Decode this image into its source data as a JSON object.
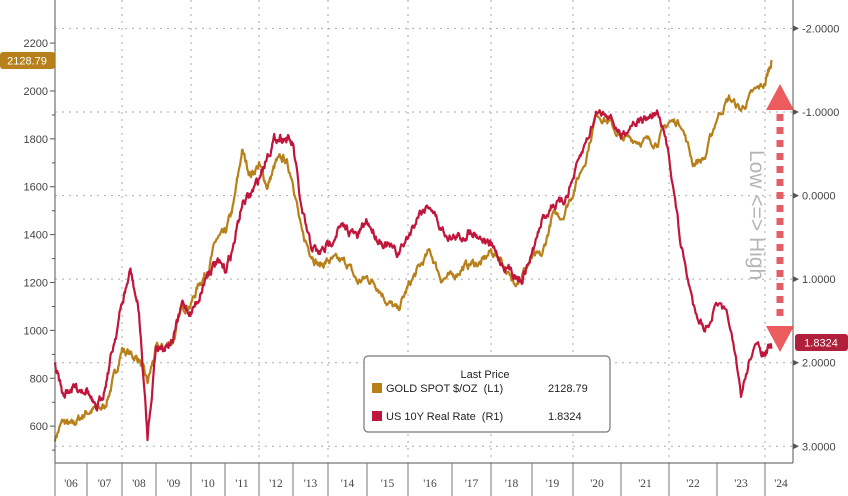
{
  "chart_data": {
    "type": "line",
    "title": "",
    "x_tick_labels": [
      "'06",
      "'07",
      "'08",
      "'09",
      "'10",
      "'11",
      "'12",
      "'13",
      "'14",
      "'15",
      "'16",
      "'17",
      "'18",
      "'19",
      "'20",
      "'21",
      "'22",
      "'23",
      "'24"
    ],
    "left_axis": {
      "ticks": [
        "600",
        "800",
        "1000",
        "1200",
        "1400",
        "1600",
        "1800",
        "2000",
        "2200"
      ],
      "ylim": [
        446,
        2380
      ]
    },
    "right_axis": {
      "ticks": [
        "-2.0000",
        "-1.0000",
        "0.0000",
        "1.0000",
        "2.0000",
        "3.0000"
      ],
      "ylim": [
        -2.34,
        3.2
      ],
      "inverted": true
    },
    "grid": true,
    "legend": {
      "position": "bottom-center",
      "header": "Last Price",
      "entries": [
        {
          "label": "GOLD SPOT $/OZ  (L1)",
          "value": "2128.79"
        },
        {
          "label": "US 10Y Real Rate  (R1)",
          "value": "1.8324"
        }
      ]
    },
    "last_value_badges": {
      "left": "2128.79",
      "right": "1.8324"
    },
    "annotation": "Low <=> High",
    "series": [
      {
        "name": "GOLD SPOT $/OZ",
        "axis": "left",
        "color": "#b8801a",
        "x": [
          2006.0,
          2006.25,
          2006.5,
          2006.75,
          2007.0,
          2007.25,
          2007.5,
          2007.75,
          2008.0,
          2008.25,
          2008.5,
          2008.75,
          2009.0,
          2009.25,
          2009.5,
          2009.75,
          2010.0,
          2010.25,
          2010.5,
          2010.75,
          2011.0,
          2011.25,
          2011.5,
          2011.75,
          2012.0,
          2012.25,
          2012.5,
          2012.75,
          2013.0,
          2013.25,
          2013.5,
          2013.75,
          2014.0,
          2014.25,
          2014.5,
          2014.75,
          2015.0,
          2015.25,
          2015.5,
          2015.75,
          2016.0,
          2016.25,
          2016.5,
          2016.75,
          2017.0,
          2017.25,
          2017.5,
          2017.75,
          2018.0,
          2018.25,
          2018.5,
          2018.75,
          2019.0,
          2019.25,
          2019.5,
          2019.75,
          2020.0,
          2020.25,
          2020.5,
          2020.75,
          2021.0,
          2021.25,
          2021.5,
          2021.75,
          2022.0,
          2022.25,
          2022.5,
          2022.75,
          2023.0,
          2023.25,
          2023.5,
          2023.75,
          2024.0,
          2024.2
        ],
        "y": [
          550,
          620,
          600,
          630,
          660,
          670,
          680,
          790,
          920,
          900,
          880,
          780,
          920,
          930,
          960,
          1100,
          1110,
          1200,
          1250,
          1380,
          1400,
          1520,
          1750,
          1650,
          1690,
          1600,
          1700,
          1720,
          1630,
          1400,
          1330,
          1270,
          1290,
          1290,
          1280,
          1200,
          1220,
          1190,
          1120,
          1080,
          1180,
          1260,
          1330,
          1220,
          1220,
          1260,
          1280,
          1280,
          1330,
          1300,
          1200,
          1230,
          1300,
          1310,
          1480,
          1480,
          1580,
          1710,
          1910,
          1870,
          1800,
          1800,
          1790,
          1790,
          1870,
          1870,
          1700,
          1720,
          1890,
          1970,
          1920,
          1990,
          2030,
          2128.79
        ]
      },
      {
        "name": "US 10Y Real Rate",
        "axis": "right",
        "color": "#c0163c",
        "x": [
          2006.0,
          2006.25,
          2006.5,
          2006.75,
          2007.0,
          2007.25,
          2007.5,
          2007.75,
          2008.0,
          2008.25,
          2008.5,
          2008.75,
          2009.0,
          2009.25,
          2009.5,
          2009.75,
          2010.0,
          2010.25,
          2010.5,
          2010.75,
          2011.0,
          2011.25,
          2011.5,
          2011.75,
          2012.0,
          2012.25,
          2012.5,
          2012.75,
          2013.0,
          2013.25,
          2013.5,
          2013.75,
          2014.0,
          2014.25,
          2014.5,
          2014.75,
          2015.0,
          2015.25,
          2015.5,
          2015.75,
          2016.0,
          2016.25,
          2016.5,
          2016.75,
          2017.0,
          2017.25,
          2017.5,
          2017.75,
          2018.0,
          2018.25,
          2018.5,
          2018.75,
          2019.0,
          2019.25,
          2019.5,
          2019.75,
          2020.0,
          2020.25,
          2020.5,
          2020.75,
          2021.0,
          2021.25,
          2021.5,
          2021.75,
          2022.0,
          2022.25,
          2022.5,
          2022.75,
          2023.0,
          2023.25,
          2023.5,
          2023.75,
          2024.0,
          2024.2
        ],
        "y": [
          2.0,
          2.4,
          2.3,
          2.3,
          2.3,
          2.6,
          2.3,
          1.8,
          1.3,
          0.9,
          1.4,
          2.9,
          1.8,
          1.8,
          1.7,
          1.3,
          1.4,
          1.2,
          0.9,
          0.8,
          0.9,
          0.6,
          0.1,
          0.0,
          -0.2,
          -0.5,
          -0.7,
          -0.7,
          -0.6,
          0.2,
          0.6,
          0.7,
          0.6,
          0.4,
          0.4,
          0.5,
          0.3,
          0.5,
          0.6,
          0.7,
          0.5,
          0.2,
          0.1,
          0.4,
          0.5,
          0.5,
          0.4,
          0.5,
          0.6,
          0.8,
          0.9,
          1.0,
          0.7,
          0.3,
          0.1,
          0.1,
          -0.2,
          -0.6,
          -1.0,
          -1.0,
          -0.7,
          -0.9,
          -0.9,
          -1.0,
          -0.5,
          0.6,
          1.3,
          1.6,
          1.3,
          1.5,
          2.4,
          1.8,
          1.9,
          1.8324
        ]
      }
    ]
  }
}
